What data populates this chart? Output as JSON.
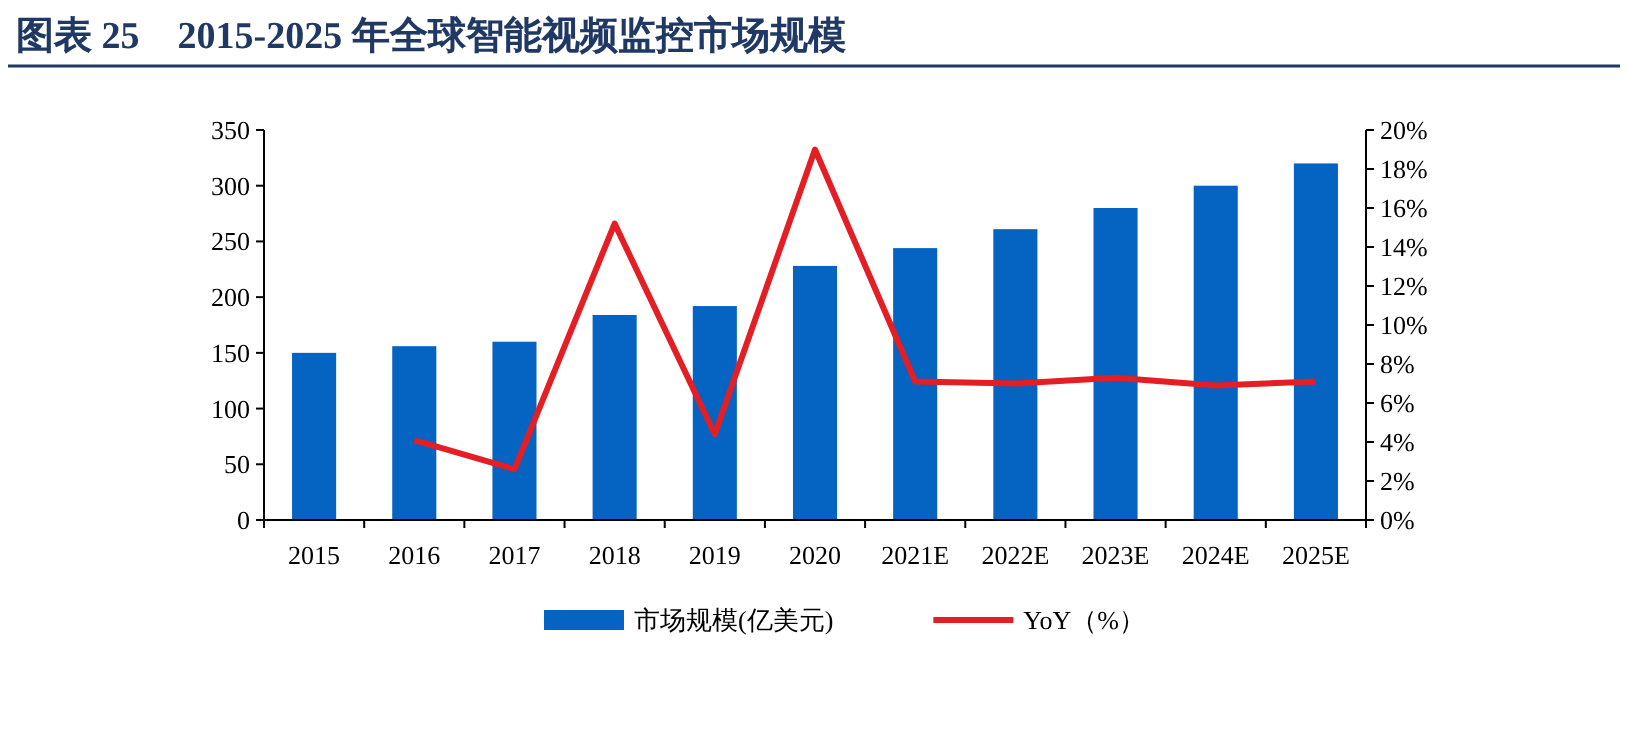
{
  "chart_data": {
    "type": "bar",
    "title": "图表 25　2015-2025 年全球智能视频监控市场规模",
    "categories": [
      "2015",
      "2016",
      "2017",
      "2018",
      "2019",
      "2020",
      "2021E",
      "2022E",
      "2023E",
      "2024E",
      "2025E"
    ],
    "series": [
      {
        "name": "市场规模(亿美元)",
        "color": "#0563c1",
        "values": [
          150,
          156,
          160,
          184,
          192,
          228,
          244,
          261,
          280,
          300,
          320
        ]
      },
      {
        "name": "YoY（%）",
        "type": "line",
        "axis": "y2",
        "color": "#e31e24",
        "values": [
          null,
          4.1,
          2.6,
          15.2,
          4.4,
          19.0,
          7.1,
          7.0,
          7.3,
          6.9,
          7.1
        ]
      }
    ],
    "ylim": [
      0,
      350
    ],
    "yticks": [
      0,
      50,
      100,
      150,
      200,
      250,
      300,
      350
    ],
    "y2lim": [
      0,
      20
    ],
    "y2ticks": [
      {
        "value": 0,
        "label": "0%"
      },
      {
        "value": 2,
        "label": "2%"
      },
      {
        "value": 4,
        "label": "4%"
      },
      {
        "value": 6,
        "label": "6%"
      },
      {
        "value": 8,
        "label": "8%"
      },
      {
        "value": 10,
        "label": "10%"
      },
      {
        "value": 12,
        "label": "12%"
      },
      {
        "value": 14,
        "label": "14%"
      },
      {
        "value": 16,
        "label": "16%"
      },
      {
        "value": 18,
        "label": "18%"
      },
      {
        "value": 20,
        "label": "20%"
      }
    ],
    "legend": "bottom",
    "grid": false
  }
}
